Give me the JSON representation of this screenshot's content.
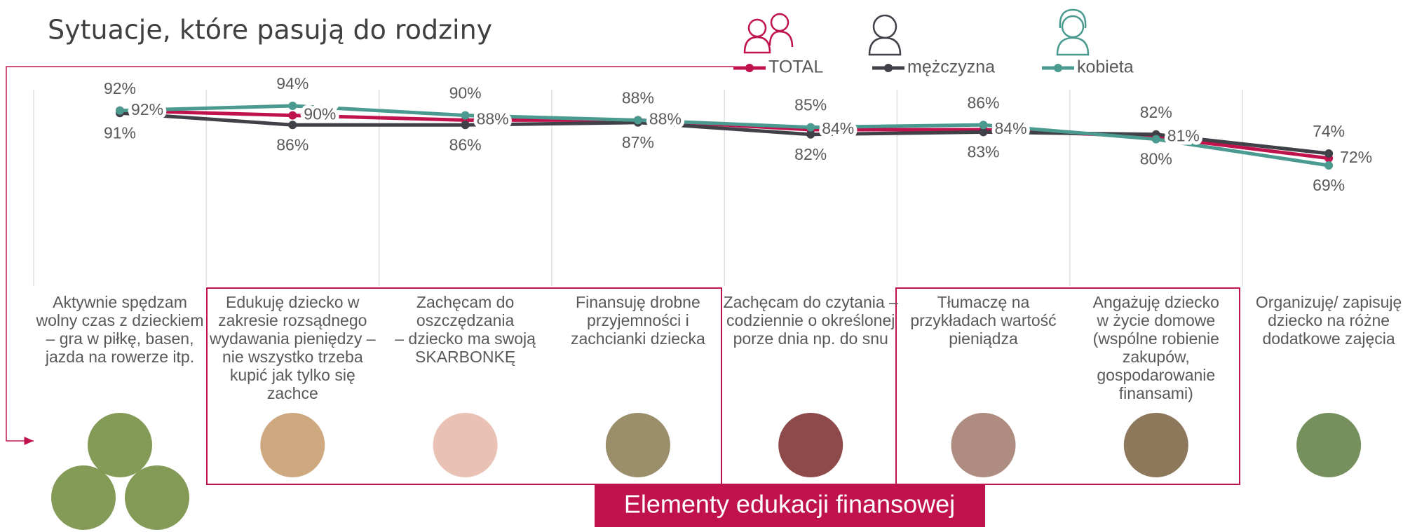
{
  "chart_data": {
    "type": "line",
    "title": "Sytuacje, które pasują do rodziny",
    "categories": [
      [
        "Aktywnie spędzam",
        "wolny czas z dzieckiem",
        "– gra w piłkę, basen,",
        "jazda na rowerze itp."
      ],
      [
        "Edukuję dziecko w",
        "zakresie rozsądnego",
        "wydawania pieniędzy –",
        "nie wszystko trzeba",
        "kupić jak tylko się",
        "zachce"
      ],
      [
        "Zachęcam do",
        "oszczędzania",
        "– dziecko ma swoją",
        "SKARBONKĘ"
      ],
      [
        "Finansuję drobne",
        "przyjemności i",
        "zachcianki dziecka"
      ],
      [
        "Zachęcam do czytania –",
        "codziennie o określonej",
        "porze dnia np. do snu"
      ],
      [
        "Tłumaczę na",
        "przykładach wartość",
        "pieniądza"
      ],
      [
        "Angażuję dziecko",
        "w życie domowe",
        "(wspólne robienie",
        "zakupów,",
        "gospodarowanie",
        "finansami)"
      ],
      [
        "Organizuję/ zapisuję",
        "dziecko na różne",
        "dodatkowe zajęcia"
      ]
    ],
    "series": [
      {
        "name": "TOTAL",
        "color": "#c0134e",
        "values": [
          92,
          90,
          88,
          88,
          84,
          84,
          81,
          72
        ],
        "value_labels": [
          "92%",
          "90%",
          "88%",
          "88%",
          "84%",
          "84%",
          "81%",
          "72%"
        ]
      },
      {
        "name": "mężczyzna",
        "color": "#404048",
        "values": [
          91,
          86,
          86,
          87,
          82,
          83,
          82,
          74
        ],
        "value_labels": [
          "91%",
          "86%",
          "86%",
          "87%",
          "82%",
          "83%",
          "82%",
          "74%"
        ]
      },
      {
        "name": "kobieta",
        "color": "#4a9a90",
        "values": [
          92,
          94,
          90,
          88,
          85,
          86,
          80,
          69
        ],
        "value_labels": [
          "92%",
          "94%",
          "90%",
          "88%",
          "85%",
          "86%",
          "80%",
          "69%"
        ]
      }
    ],
    "banner": "Elementy edukacji finansowej"
  }
}
